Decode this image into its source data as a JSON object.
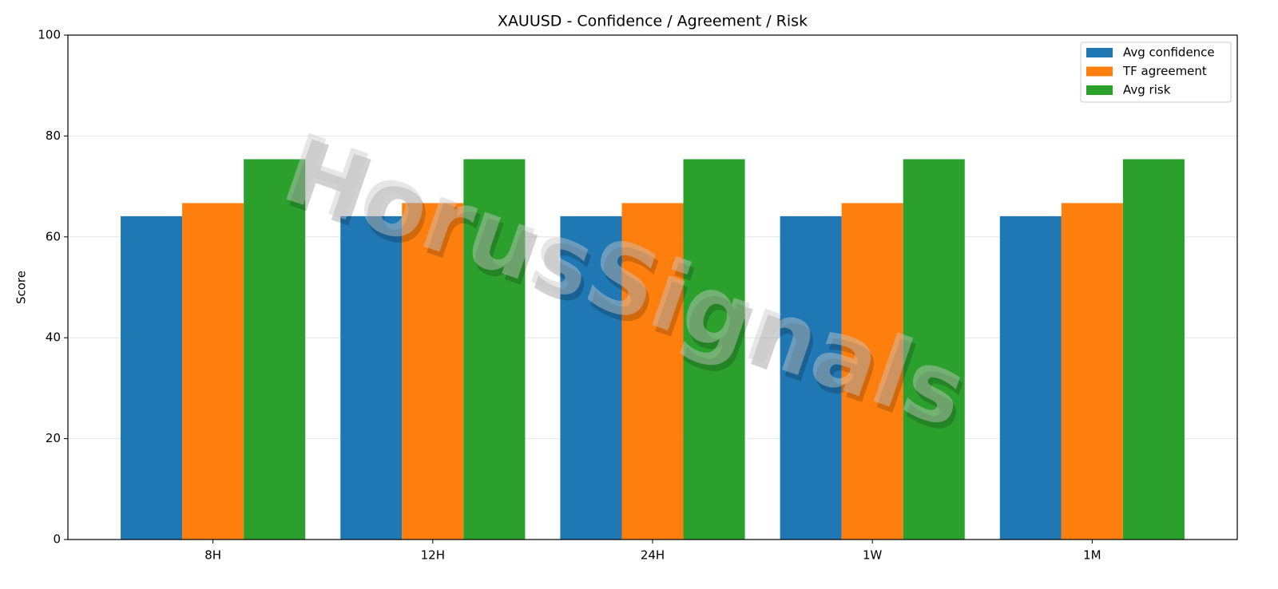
{
  "chart_data": {
    "type": "bar",
    "title": "XAUUSD - Confidence / Agreement / Risk",
    "ylabel": "Score",
    "categories": [
      "8H",
      "12H",
      "24H",
      "1W",
      "1M"
    ],
    "series": [
      {
        "name": "Avg confidence",
        "color": "#1f77b4",
        "values": [
          64.1,
          64.1,
          64.1,
          64.1,
          64.1
        ]
      },
      {
        "name": "TF agreement",
        "color": "#ff7f0e",
        "values": [
          66.7,
          66.7,
          66.7,
          66.7,
          66.7
        ]
      },
      {
        "name": "Avg risk",
        "color": "#2ca02c",
        "values": [
          75.4,
          75.4,
          75.4,
          75.4,
          75.4
        ]
      }
    ],
    "ylim": [
      0,
      100
    ],
    "yticks": [
      0,
      20,
      40,
      60,
      80,
      100
    ],
    "grid": true,
    "legend": "upper right",
    "watermark": "HorusSignals"
  }
}
